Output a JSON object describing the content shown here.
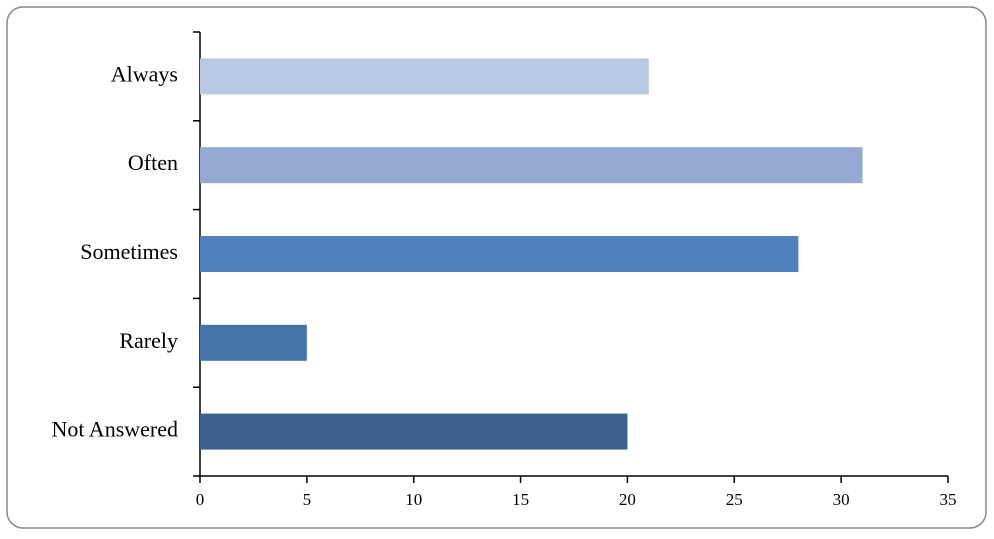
{
  "chart_data": {
    "type": "barh",
    "categories": [
      "Always",
      "Often",
      "Sometimes",
      "Rarely",
      "Not Answered"
    ],
    "values": [
      21,
      31,
      28,
      5,
      20
    ],
    "colors": [
      "#b9c8e3",
      "#95a9d2",
      "#4f81bd",
      "#4673a8",
      "#3b5f8f"
    ],
    "xlim": [
      0,
      35
    ],
    "xticks": [
      0,
      5,
      10,
      15,
      20,
      25,
      30,
      35
    ],
    "grid": false
  }
}
